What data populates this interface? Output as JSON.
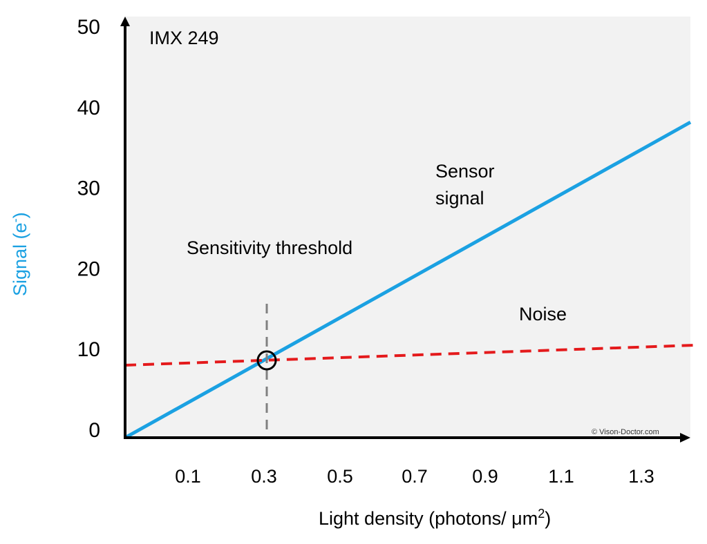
{
  "chart_data": {
    "type": "line",
    "title": "IMX 249",
    "xlabel": "Light density (photons/ μm",
    "xlabel_superscript": "2",
    "xlabel_suffix": ")",
    "ylabel": "Signal (e",
    "ylabel_superscript": "-",
    "ylabel_suffix": ")",
    "xlim": [
      -0.05,
      1.45
    ],
    "ylim": [
      0,
      50
    ],
    "x_ticks": [
      0.1,
      0.3,
      0.5,
      0.7,
      0.9,
      1.1,
      1.3
    ],
    "x_tick_labels": [
      "0.1",
      "0.3",
      "0.5",
      "0.7",
      "0.9",
      "1.1",
      "1.3"
    ],
    "y_ticks": [
      0,
      10,
      20,
      30,
      40,
      50
    ],
    "y_tick_labels": [
      "0",
      "10",
      "20",
      "30",
      "40",
      "50"
    ],
    "series": [
      {
        "name": "Sensor signal",
        "style": "solid",
        "color": "#1BA1E2",
        "x": [
          -0.05,
          1.45
        ],
        "y": [
          0,
          38.5
        ]
      },
      {
        "name": "Noise",
        "style": "dashed",
        "color": "#E41A1C",
        "x": [
          -0.05,
          1.46
        ],
        "y": [
          8.9,
          11.5
        ]
      }
    ],
    "threshold": {
      "label": "Sensitivity threshold",
      "x": 0.33,
      "y": 9.4,
      "line_top_y": 16.8,
      "color": "#808080"
    },
    "annotations": {
      "sensor_signal_line1": "Sensor",
      "sensor_signal_line2": "signal",
      "noise": "Noise"
    },
    "copyright": "© Vison-Doctor.com",
    "colors": {
      "plot_background": "#F2F2F2",
      "axis": "#000000",
      "ylabel": "#1BA1E2"
    }
  }
}
